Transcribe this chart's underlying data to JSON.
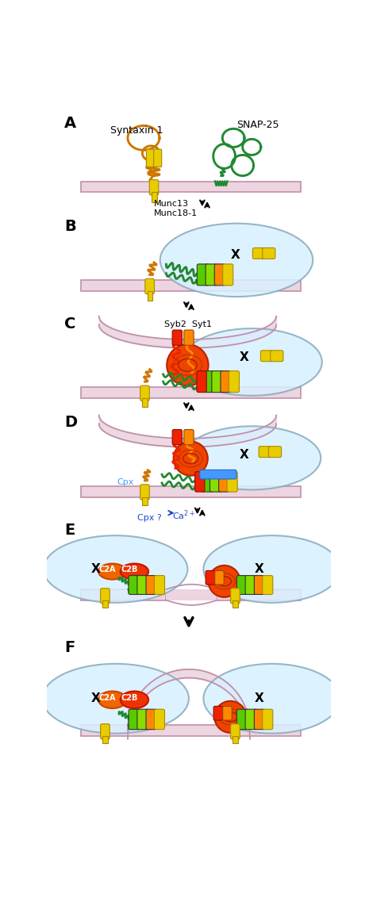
{
  "bg_color": "#ffffff",
  "membrane_color": "#ecd4e0",
  "membrane_border_color": "#c090a8",
  "syntaxin_color": "#cc7700",
  "snap25_color": "#228833",
  "synaptobrevin_color": "#dd2200",
  "syt_color": "#ff8800",
  "yellow_color": "#e8cc00",
  "yellow_dark": "#aa8800",
  "green1_color": "#55cc00",
  "green2_color": "#88dd00",
  "orange_color": "#ff8800",
  "red_color": "#ee2200",
  "blue_cpx_color": "#4499ff",
  "orange_ball_color": "#ff6600",
  "vesicle_color": "#ee3300",
  "bubble_color": "#d8f0ff",
  "bubble_border": "#88aabb",
  "label_A": "A",
  "label_B": "B",
  "label_C": "C",
  "label_D": "D",
  "label_E": "E",
  "label_F": "F",
  "label_syntaxin": "Syntaxin 1",
  "label_snap25": "SNAP-25",
  "label_munc": "Munc13\nMunc18-1",
  "label_syb2syt1": "Syb2  Syt1",
  "label_cpx": "Cpx",
  "label_cpx_q": "Cpx ?",
  "label_ca2": "Ca2+",
  "label_c2a": "C2A",
  "label_c2b": "C2B",
  "label_x": "X",
  "fig_width": 4.65,
  "fig_height": 11.41
}
